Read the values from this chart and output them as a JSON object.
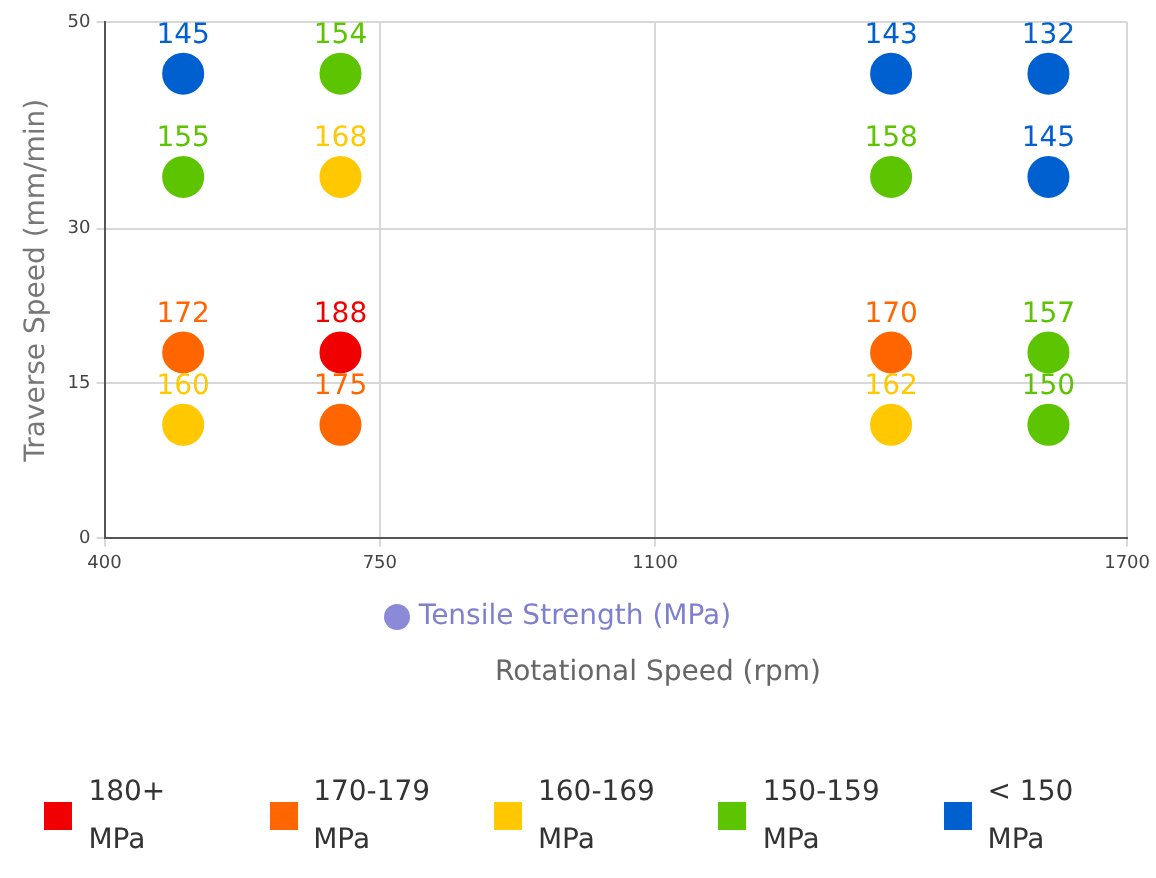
{
  "chart_data": {
    "type": "scatter",
    "xlabel": "Rotational Speed (rpm)",
    "ylabel": "Traverse Speed (mm/min)",
    "legend_title": "Tensile Strength (MPa)",
    "xlim": [
      400,
      1700
    ],
    "xticks": [
      400,
      750,
      1100,
      1700
    ],
    "ylim": [
      0,
      50
    ],
    "yticks": [
      0,
      15,
      30,
      50
    ],
    "grid": true,
    "legend": "bottom",
    "marker": "circle",
    "series": [
      {
        "name": "180+ MPa",
        "color": "#f00000",
        "x": [
          700
        ],
        "values": [
          18
        ]
      },
      {
        "name": "170-179 MPa",
        "color": "#ff6600",
        "x": [
          500,
          700,
          1400
        ],
        "values": [
          18,
          11,
          18
        ]
      },
      {
        "name": "160-169 MPa",
        "color": "#ffc800",
        "x": [
          700,
          500,
          1400
        ],
        "values": [
          35,
          11,
          11
        ]
      },
      {
        "name": "150-159 MPa",
        "color": "#5cc400",
        "x": [
          700,
          500,
          1400,
          1600,
          1600
        ],
        "values": [
          45,
          35,
          35,
          18,
          11
        ]
      },
      {
        "name": "< 150 MPa",
        "color": "#0060d0",
        "x": [
          500,
          1400,
          1600,
          1600
        ],
        "values": [
          45,
          45,
          45,
          35
        ]
      }
    ],
    "annotations": [
      {
        "text": "188",
        "x": 700,
        "y": 18
      },
      {
        "text": "172",
        "x": 500,
        "y": 18
      },
      {
        "text": "175",
        "x": 700,
        "y": 11
      },
      {
        "text": "170",
        "x": 1400,
        "y": 18
      },
      {
        "text": "168",
        "x": 700,
        "y": 35
      },
      {
        "text": "160",
        "x": 500,
        "y": 11
      },
      {
        "text": "162",
        "x": 1400,
        "y": 11
      },
      {
        "text": "154",
        "x": 700,
        "y": 45
      },
      {
        "text": "155",
        "x": 500,
        "y": 35
      },
      {
        "text": "158",
        "x": 1400,
        "y": 35
      },
      {
        "text": "157",
        "x": 1600,
        "y": 18
      },
      {
        "text": "150",
        "x": 1600,
        "y": 11
      },
      {
        "text": "145",
        "x": 500,
        "y": 45
      },
      {
        "text": "143",
        "x": 1400,
        "y": 45
      },
      {
        "text": "132",
        "x": 1600,
        "y": 45
      },
      {
        "text": "145",
        "x": 1600,
        "y": 35
      }
    ]
  }
}
